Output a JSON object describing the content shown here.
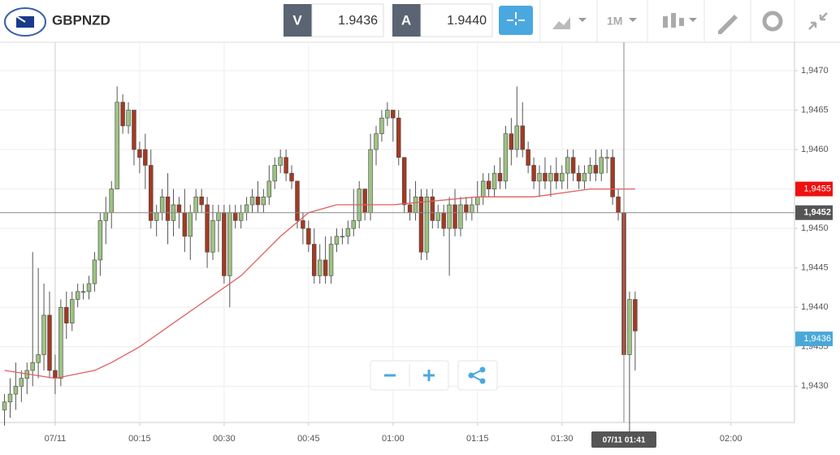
{
  "header": {
    "symbol": "GBPNZD",
    "bid_label": "V",
    "bid": "1.9436",
    "ask_label": "A",
    "ask": "1.9440",
    "timeframe": "1M"
  },
  "chart_data": {
    "type": "candlestick",
    "x": [
      -9,
      -8,
      -7,
      -6,
      -5,
      -4,
      -3,
      -2,
      -1,
      0,
      1,
      2,
      3,
      4,
      5,
      6,
      7,
      8,
      9,
      10,
      11,
      12,
      13,
      14,
      15,
      16,
      17,
      18,
      19,
      20,
      21,
      22,
      23,
      24,
      25,
      26,
      27,
      28,
      29,
      30,
      31,
      32,
      33,
      34,
      35,
      36,
      37,
      38,
      39,
      40,
      41,
      42,
      43,
      44,
      45,
      46,
      47,
      48,
      49,
      50,
      51,
      52,
      53,
      54,
      55,
      56,
      57,
      58,
      59,
      60,
      61,
      62,
      63,
      64,
      65,
      66,
      67,
      68,
      69,
      70,
      71,
      72,
      73,
      74,
      75,
      76,
      77,
      78,
      79,
      80,
      81,
      82,
      83,
      84,
      85,
      86,
      87,
      88,
      89,
      90,
      91,
      92,
      93,
      94,
      95,
      96,
      97,
      98,
      99,
      100,
      101,
      102,
      103
    ],
    "series": [
      {
        "up_color": "#9dc383",
        "down_color": "#a33a22",
        "values": [
          [
            1.9427,
            1.9429,
            1.9425,
            1.9428
          ],
          [
            1.9428,
            1.9431,
            1.9426,
            1.9429
          ],
          [
            1.9429,
            1.9433,
            1.9427,
            1.943
          ],
          [
            1.943,
            1.9432,
            1.9428,
            1.9431
          ],
          [
            1.9431,
            1.9433,
            1.9429,
            1.9432
          ],
          [
            1.9432,
            1.9447,
            1.943,
            1.9433
          ],
          [
            1.9433,
            1.9445,
            1.9431,
            1.9434
          ],
          [
            1.9434,
            1.9443,
            1.9432,
            1.9439
          ],
          [
            1.9439,
            1.9442,
            1.9431,
            1.9432
          ],
          [
            1.9432,
            1.9434,
            1.9429,
            1.9431
          ],
          [
            1.9431,
            1.9441,
            1.943,
            1.944
          ],
          [
            1.944,
            1.9442,
            1.9436,
            1.9438
          ],
          [
            1.9438,
            1.9442,
            1.9437,
            1.9441
          ],
          [
            1.9441,
            1.9443,
            1.944,
            1.9442
          ],
          [
            1.9442,
            1.9443,
            1.9441,
            1.9442
          ],
          [
            1.9442,
            1.9444,
            1.9441,
            1.9443
          ],
          [
            1.9443,
            1.9447,
            1.9442,
            1.9446
          ],
          [
            1.9446,
            1.9452,
            1.9444,
            1.9451
          ],
          [
            1.9451,
            1.9454,
            1.9448,
            1.9452
          ],
          [
            1.9452,
            1.9456,
            1.945,
            1.9455
          ],
          [
            1.9455,
            1.9468,
            1.9455,
            1.9466
          ],
          [
            1.9466,
            1.9467,
            1.9462,
            1.9463
          ],
          [
            1.9463,
            1.9466,
            1.9462,
            1.9465
          ],
          [
            1.9465,
            1.9465,
            1.9458,
            1.946
          ],
          [
            1.946,
            1.9461,
            1.9457,
            1.9459
          ],
          [
            1.946,
            1.9462,
            1.9455,
            1.9458
          ],
          [
            1.9458,
            1.946,
            1.945,
            1.9451
          ],
          [
            1.9451,
            1.9453,
            1.9449,
            1.9452
          ],
          [
            1.9452,
            1.9455,
            1.9451,
            1.9454
          ],
          [
            1.9454,
            1.9457,
            1.9448,
            1.9451
          ],
          [
            1.9451,
            1.9455,
            1.9449,
            1.9453
          ],
          [
            1.9453,
            1.9454,
            1.945,
            1.9452
          ],
          [
            1.9452,
            1.9455,
            1.9447,
            1.9449
          ],
          [
            1.9449,
            1.9453,
            1.9446,
            1.9452
          ],
          [
            1.9452,
            1.9455,
            1.9451,
            1.9454
          ],
          [
            1.9454,
            1.9455,
            1.9452,
            1.9453
          ],
          [
            1.9453,
            1.9454,
            1.9445,
            1.9447
          ],
          [
            1.9447,
            1.9453,
            1.9446,
            1.9451
          ],
          [
            1.9451,
            1.9453,
            1.9447,
            1.9452
          ],
          [
            1.9452,
            1.9453,
            1.9443,
            1.9444
          ],
          [
            1.9444,
            1.9453,
            1.944,
            1.9452
          ],
          [
            1.9452,
            1.9453,
            1.945,
            1.9451
          ],
          [
            1.9451,
            1.9453,
            1.945,
            1.9452
          ],
          [
            1.9452,
            1.9454,
            1.9451,
            1.9453
          ],
          [
            1.9453,
            1.9455,
            1.9452,
            1.9454
          ],
          [
            1.9454,
            1.9456,
            1.9452,
            1.9453
          ],
          [
            1.9453,
            1.9455,
            1.9452,
            1.9454
          ],
          [
            1.9454,
            1.9458,
            1.9453,
            1.9456
          ],
          [
            1.9456,
            1.9459,
            1.9455,
            1.9458
          ],
          [
            1.9458,
            1.946,
            1.9457,
            1.9459
          ],
          [
            1.9459,
            1.946,
            1.9456,
            1.9457
          ],
          [
            1.9457,
            1.9458,
            1.9455,
            1.9456
          ],
          [
            1.9456,
            1.9456,
            1.945,
            1.9451
          ],
          [
            1.9451,
            1.9452,
            1.9448,
            1.945
          ],
          [
            1.945,
            1.9451,
            1.9447,
            1.9448
          ],
          [
            1.9448,
            1.945,
            1.9443,
            1.9444
          ],
          [
            1.9444,
            1.9448,
            1.9443,
            1.9446
          ],
          [
            1.9446,
            1.9449,
            1.9443,
            1.9444
          ],
          [
            1.9444,
            1.9449,
            1.9443,
            1.9448
          ],
          [
            1.9448,
            1.945,
            1.9447,
            1.9449
          ],
          [
            1.9449,
            1.945,
            1.9448,
            1.9449
          ],
          [
            1.9449,
            1.9451,
            1.9448,
            1.945
          ],
          [
            1.945,
            1.9455,
            1.9449,
            1.9451
          ],
          [
            1.9451,
            1.9456,
            1.945,
            1.9455
          ],
          [
            1.9455,
            1.9455,
            1.9451,
            1.9452
          ],
          [
            1.9452,
            1.9462,
            1.9451,
            1.946
          ],
          [
            1.946,
            1.9463,
            1.9458,
            1.9462
          ],
          [
            1.9462,
            1.9465,
            1.9461,
            1.9464
          ],
          [
            1.9464,
            1.9466,
            1.9463,
            1.9465
          ],
          [
            1.9465,
            1.9465,
            1.9461,
            1.9464
          ],
          [
            1.9464,
            1.9465,
            1.9458,
            1.9459
          ],
          [
            1.9459,
            1.9459,
            1.9452,
            1.9453
          ],
          [
            1.9453,
            1.9455,
            1.9451,
            1.9452
          ],
          [
            1.9452,
            1.9456,
            1.9451,
            1.9454
          ],
          [
            1.9454,
            1.9455,
            1.9446,
            1.9447
          ],
          [
            1.9447,
            1.9455,
            1.9446,
            1.9454
          ],
          [
            1.9454,
            1.9455,
            1.945,
            1.9451
          ],
          [
            1.9451,
            1.9453,
            1.945,
            1.9452
          ],
          [
            1.9452,
            1.9453,
            1.9449,
            1.945
          ],
          [
            1.945,
            1.9454,
            1.9444,
            1.9453
          ],
          [
            1.9453,
            1.9455,
            1.9449,
            1.945
          ],
          [
            1.945,
            1.9454,
            1.9449,
            1.9453
          ],
          [
            1.9453,
            1.9454,
            1.9451,
            1.9452
          ],
          [
            1.9452,
            1.9454,
            1.9451,
            1.9453
          ],
          [
            1.9453,
            1.9456,
            1.9452,
            1.9454
          ],
          [
            1.9454,
            1.9457,
            1.9453,
            1.9456
          ],
          [
            1.9456,
            1.9457,
            1.9454,
            1.9455
          ],
          [
            1.9455,
            1.9458,
            1.9454,
            1.9457
          ],
          [
            1.9457,
            1.9459,
            1.9455,
            1.9456
          ],
          [
            1.9456,
            1.9463,
            1.9455,
            1.9462
          ],
          [
            1.9462,
            1.9464,
            1.9458,
            1.946
          ],
          [
            1.946,
            1.9468,
            1.9459,
            1.9463
          ],
          [
            1.9463,
            1.9466,
            1.9459,
            1.946
          ],
          [
            1.946,
            1.9461,
            1.9457,
            1.9458
          ],
          [
            1.9458,
            1.9459,
            1.9455,
            1.9456
          ],
          [
            1.9456,
            1.9458,
            1.9454,
            1.9457
          ],
          [
            1.9457,
            1.9459,
            1.9455,
            1.9456
          ],
          [
            1.9456,
            1.9458,
            1.9454,
            1.9457
          ],
          [
            1.9457,
            1.9459,
            1.9455,
            1.9456
          ],
          [
            1.9456,
            1.9458,
            1.9455,
            1.9457
          ],
          [
            1.9457,
            1.946,
            1.9455,
            1.9459
          ],
          [
            1.9459,
            1.946,
            1.9456,
            1.9457
          ],
          [
            1.9457,
            1.9458,
            1.9455,
            1.9456
          ],
          [
            1.9456,
            1.9458,
            1.9455,
            1.9457
          ],
          [
            1.9457,
            1.9459,
            1.9456,
            1.9458
          ],
          [
            1.9458,
            1.946,
            1.9456,
            1.9457
          ],
          [
            1.9457,
            1.946,
            1.9456,
            1.9459
          ],
          [
            1.9459,
            1.946,
            1.9457,
            1.9459
          ],
          [
            1.9459,
            1.946,
            1.9453,
            1.9454
          ],
          [
            1.9454,
            1.9455,
            1.9451,
            1.9452
          ],
          [
            1.9452,
            1.9452,
            1.9426,
            1.9434
          ],
          [
            1.9434,
            1.9442,
            1.9423,
            1.9441
          ],
          [
            1.9441,
            1.9442,
            1.9432,
            1.9437
          ]
        ]
      }
    ],
    "ma": {
      "color": "#e06060",
      "x": [
        -9,
        0,
        7,
        10,
        15,
        25,
        33,
        40,
        45,
        50,
        60,
        75,
        85,
        95,
        100,
        103
      ],
      "values": [
        1.9432,
        1.9431,
        1.9432,
        1.9433,
        1.9435,
        1.944,
        1.9444,
        1.9449,
        1.9452,
        1.9453,
        1.9453,
        1.9454,
        1.9454,
        1.9455,
        1.9455,
        1.9455
      ]
    },
    "xlim": [
      -9.8,
      131.3
    ],
    "ylim": [
      1.94254,
      1.94736
    ],
    "xticks": [
      {
        "value": 0,
        "label": "07/11"
      },
      {
        "value": 15,
        "label": "00:15"
      },
      {
        "value": 30,
        "label": "00:30"
      },
      {
        "value": 45,
        "label": "00:45"
      },
      {
        "value": 60,
        "label": "01:00"
      },
      {
        "value": 75,
        "label": "01:15"
      },
      {
        "value": 90,
        "label": "01:30"
      },
      {
        "value": 120,
        "label": "02:00"
      }
    ],
    "yticks": [
      {
        "value": 1.943,
        "label": "1,9430"
      },
      {
        "value": 1.9435,
        "label": "1,9435"
      },
      {
        "value": 1.944,
        "label": "1,9440"
      },
      {
        "value": 1.9445,
        "label": "1,9445"
      },
      {
        "value": 1.945,
        "label": "1,9450"
      },
      {
        "value": 1.9455,
        "label": "1,9455"
      },
      {
        "value": 1.946,
        "label": "1,9460"
      },
      {
        "value": 1.9465,
        "label": "1,9465"
      },
      {
        "value": 1.947,
        "label": "1,9470"
      }
    ],
    "grid": true,
    "price_markers": [
      {
        "value": 1.9455,
        "label": "1,9455",
        "color": "#ee1111"
      },
      {
        "value": 1.9436,
        "label": "1,9436",
        "color": "#4aa8d8"
      }
    ],
    "crosshair": {
      "x": 101,
      "x_label": "07/11 01:41",
      "y": 1.9452,
      "y_label": "1,9452"
    }
  }
}
